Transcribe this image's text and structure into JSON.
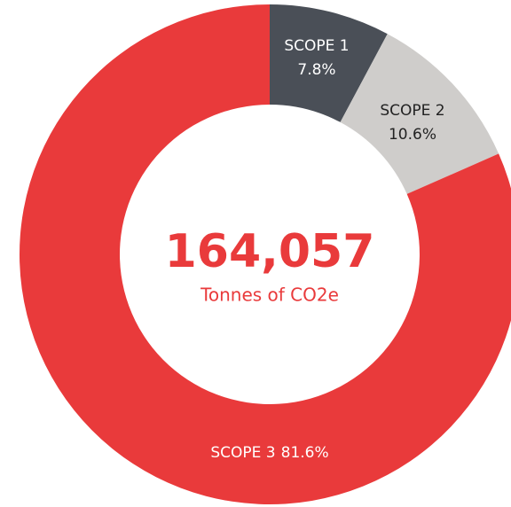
{
  "chart_data": {
    "type": "donut",
    "categories": [
      "SCOPE 1",
      "SCOPE 2",
      "SCOPE 3"
    ],
    "values": [
      7.8,
      10.6,
      81.6
    ],
    "value_labels": [
      "7.8%",
      "10.6%",
      "81.6%"
    ],
    "colors": [
      "#4a4f57",
      "#cfcdcb",
      "#e93a3b"
    ],
    "label_colors": [
      "#ffffff",
      "#222222",
      "#ffffff"
    ],
    "center_label": "164,057",
    "center_sublabel": "Tonnes of CO2e",
    "center_color": "#e93a3b"
  }
}
